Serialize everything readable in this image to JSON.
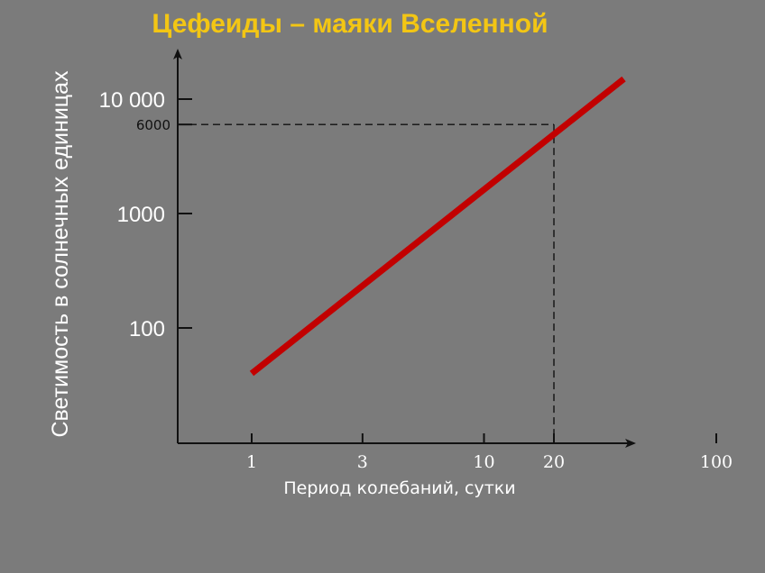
{
  "chart_data": {
    "type": "line",
    "title": "Цефеиды – маяки Вселенной",
    "xlabel": "Период колебаний, сутки",
    "ylabel": "Светимость в солнечных единицах",
    "x_scale": "log",
    "y_scale": "log",
    "x_ticks": [
      {
        "value": 1,
        "label": "1"
      },
      {
        "value": 3,
        "label": "3"
      },
      {
        "value": 10,
        "label": "10"
      },
      {
        "value": 20,
        "label": "20"
      },
      {
        "value": 100,
        "label": "100"
      }
    ],
    "y_ticks": [
      {
        "value": 100,
        "label": "100",
        "style": "major"
      },
      {
        "value": 1000,
        "label": "1000",
        "style": "major"
      },
      {
        "value": 6000,
        "label": "6000",
        "style": "minor"
      },
      {
        "value": 10000,
        "label": "10 000",
        "style": "major"
      }
    ],
    "series": [
      {
        "color": "#c20000",
        "points": [
          {
            "x": 1,
            "y": 40
          },
          {
            "x": 40,
            "y": 15000
          }
        ]
      }
    ],
    "annotations": [
      {
        "type": "dashed-guide",
        "x": 20,
        "y": 6000
      }
    ],
    "grid": false
  }
}
